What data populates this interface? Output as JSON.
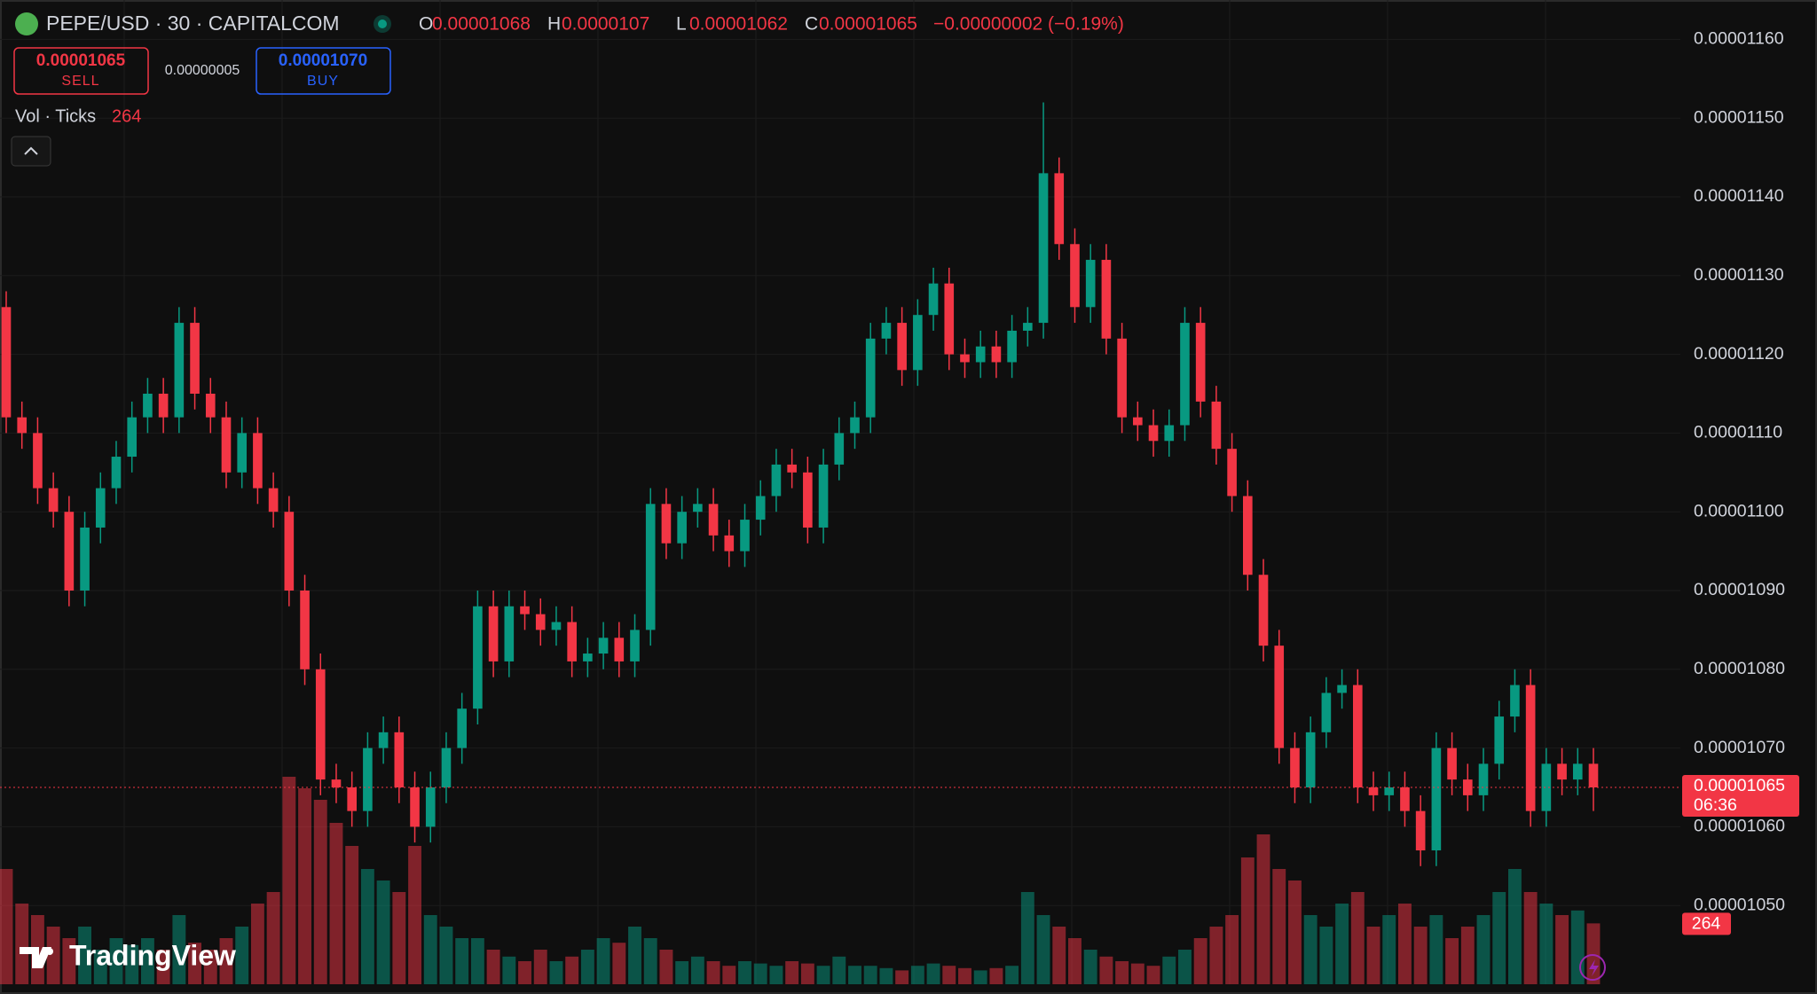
{
  "header": {
    "symbol": "PEPE/USD · 30 · CAPITALCOM",
    "ohlc_labels": [
      "O",
      "H",
      "L",
      "C"
    ],
    "change": "−0.00000002 (−0.19%)",
    "sell_price": "0.00001065",
    "sell_label": "SELL",
    "spread": "0.00000005",
    "buy_price": "0.00001070",
    "buy_label": "BUY",
    "volume_title": "Vol · Ticks",
    "countdown": "06:36",
    "brand": "TradingView"
  },
  "chart_data": {
    "type": "candlestick",
    "up_color": "#089981",
    "down_color": "#f23645",
    "grid": true,
    "ylim": [
      1.04e-05,
      1.165e-05
    ],
    "yticks": [
      {
        "value": 1.05e-05,
        "label": "0.00001050"
      },
      {
        "value": 1.06e-05,
        "label": "0.00001060"
      },
      {
        "value": 1.07e-05,
        "label": "0.00001070"
      },
      {
        "value": 1.08e-05,
        "label": "0.00001080"
      },
      {
        "value": 1.09e-05,
        "label": "0.00001090"
      },
      {
        "value": 1.1e-05,
        "label": "0.00001100"
      },
      {
        "value": 1.11e-05,
        "label": "0.00001110"
      },
      {
        "value": 1.12e-05,
        "label": "0.00001120"
      },
      {
        "value": 1.13e-05,
        "label": "0.00001130"
      },
      {
        "value": 1.14e-05,
        "label": "0.00001140"
      },
      {
        "value": 1.15e-05,
        "label": "0.00001150"
      },
      {
        "value": 1.16e-05,
        "label": "0.00001160"
      }
    ],
    "open": [
      1.126e-05,
      1.112e-05,
      1.11e-05,
      1.103e-05,
      1.1e-05,
      1.09e-05,
      1.098e-05,
      1.103e-05,
      1.107e-05,
      1.112e-05,
      1.115e-05,
      1.112e-05,
      1.124e-05,
      1.115e-05,
      1.112e-05,
      1.105e-05,
      1.11e-05,
      1.103e-05,
      1.1e-05,
      1.09e-05,
      1.08e-05,
      1.066e-05,
      1.065e-05,
      1.062e-05,
      1.07e-05,
      1.072e-05,
      1.065e-05,
      1.06e-05,
      1.065e-05,
      1.07e-05,
      1.075e-05,
      1.088e-05,
      1.081e-05,
      1.088e-05,
      1.087e-05,
      1.085e-05,
      1.086e-05,
      1.081e-05,
      1.082e-05,
      1.084e-05,
      1.081e-05,
      1.085e-05,
      1.101e-05,
      1.096e-05,
      1.1e-05,
      1.101e-05,
      1.097e-05,
      1.095e-05,
      1.099e-05,
      1.102e-05,
      1.106e-05,
      1.105e-05,
      1.098e-05,
      1.106e-05,
      1.11e-05,
      1.112e-05,
      1.122e-05,
      1.124e-05,
      1.118e-05,
      1.125e-05,
      1.129e-05,
      1.12e-05,
      1.119e-05,
      1.121e-05,
      1.119e-05,
      1.123e-05,
      1.124e-05,
      1.143e-05,
      1.134e-05,
      1.126e-05,
      1.132e-05,
      1.122e-05,
      1.112e-05,
      1.111e-05,
      1.109e-05,
      1.111e-05,
      1.124e-05,
      1.114e-05,
      1.108e-05,
      1.102e-05,
      1.092e-05,
      1.083e-05,
      1.07e-05,
      1.065e-05,
      1.072e-05,
      1.077e-05,
      1.078e-05,
      1.065e-05,
      1.064e-05,
      1.065e-05,
      1.062e-05,
      1.057e-05,
      1.07e-05,
      1.066e-05,
      1.064e-05,
      1.068e-05,
      1.074e-05,
      1.078e-05,
      1.062e-05,
      1.068e-05,
      1.066e-05,
      1.068e-05
    ],
    "high": [
      1.128e-05,
      1.114e-05,
      1.112e-05,
      1.105e-05,
      1.102e-05,
      1.1e-05,
      1.105e-05,
      1.109e-05,
      1.114e-05,
      1.117e-05,
      1.117e-05,
      1.126e-05,
      1.126e-05,
      1.117e-05,
      1.114e-05,
      1.112e-05,
      1.112e-05,
      1.105e-05,
      1.102e-05,
      1.092e-05,
      1.082e-05,
      1.068e-05,
      1.067e-05,
      1.072e-05,
      1.074e-05,
      1.074e-05,
      1.067e-05,
      1.067e-05,
      1.072e-05,
      1.077e-05,
      1.09e-05,
      1.09e-05,
      1.09e-05,
      1.09e-05,
      1.089e-05,
      1.088e-05,
      1.088e-05,
      1.084e-05,
      1.086e-05,
      1.086e-05,
      1.087e-05,
      1.103e-05,
      1.103e-05,
      1.102e-05,
      1.103e-05,
      1.103e-05,
      1.099e-05,
      1.101e-05,
      1.104e-05,
      1.108e-05,
      1.108e-05,
      1.107e-05,
      1.108e-05,
      1.112e-05,
      1.114e-05,
      1.124e-05,
      1.126e-05,
      1.126e-05,
      1.127e-05,
      1.131e-05,
      1.131e-05,
      1.122e-05,
      1.123e-05,
      1.123e-05,
      1.125e-05,
      1.126e-05,
      1.152e-05,
      1.145e-05,
      1.136e-05,
      1.134e-05,
      1.134e-05,
      1.124e-05,
      1.114e-05,
      1.113e-05,
      1.113e-05,
      1.126e-05,
      1.126e-05,
      1.116e-05,
      1.11e-05,
      1.104e-05,
      1.094e-05,
      1.085e-05,
      1.072e-05,
      1.074e-05,
      1.079e-05,
      1.08e-05,
      1.08e-05,
      1.067e-05,
      1.067e-05,
      1.067e-05,
      1.064e-05,
      1.072e-05,
      1.072e-05,
      1.068e-05,
      1.07e-05,
      1.076e-05,
      1.08e-05,
      1.08e-05,
      1.07e-05,
      1.07e-05,
      1.07e-05,
      1.07e-05
    ],
    "low": [
      1.11e-05,
      1.108e-05,
      1.101e-05,
      1.098e-05,
      1.088e-05,
      1.088e-05,
      1.096e-05,
      1.101e-05,
      1.105e-05,
      1.11e-05,
      1.11e-05,
      1.11e-05,
      1.113e-05,
      1.11e-05,
      1.103e-05,
      1.103e-05,
      1.101e-05,
      1.098e-05,
      1.088e-05,
      1.078e-05,
      1.064e-05,
      1.063e-05,
      1.06e-05,
      1.06e-05,
      1.068e-05,
      1.063e-05,
      1.058e-05,
      1.058e-05,
      1.063e-05,
      1.068e-05,
      1.073e-05,
      1.079e-05,
      1.079e-05,
      1.085e-05,
      1.083e-05,
      1.083e-05,
      1.079e-05,
      1.079e-05,
      1.08e-05,
      1.079e-05,
      1.079e-05,
      1.083e-05,
      1.094e-05,
      1.094e-05,
      1.098e-05,
      1.095e-05,
      1.093e-05,
      1.093e-05,
      1.097e-05,
      1.1e-05,
      1.103e-05,
      1.096e-05,
      1.096e-05,
      1.104e-05,
      1.108e-05,
      1.11e-05,
      1.12e-05,
      1.116e-05,
      1.116e-05,
      1.123e-05,
      1.118e-05,
      1.117e-05,
      1.117e-05,
      1.117e-05,
      1.117e-05,
      1.121e-05,
      1.122e-05,
      1.132e-05,
      1.124e-05,
      1.124e-05,
      1.12e-05,
      1.11e-05,
      1.109e-05,
      1.107e-05,
      1.107e-05,
      1.109e-05,
      1.112e-05,
      1.106e-05,
      1.1e-05,
      1.09e-05,
      1.081e-05,
      1.068e-05,
      1.063e-05,
      1.063e-05,
      1.07e-05,
      1.075e-05,
      1.063e-05,
      1.062e-05,
      1.062e-05,
      1.06e-05,
      1.055e-05,
      1.055e-05,
      1.064e-05,
      1.062e-05,
      1.062e-05,
      1.066e-05,
      1.072e-05,
      1.06e-05,
      1.06e-05,
      1.064e-05,
      1.064e-05,
      1.062e-05
    ],
    "close": [
      1.112e-05,
      1.11e-05,
      1.103e-05,
      1.1e-05,
      1.09e-05,
      1.098e-05,
      1.103e-05,
      1.107e-05,
      1.112e-05,
      1.115e-05,
      1.112e-05,
      1.124e-05,
      1.115e-05,
      1.112e-05,
      1.105e-05,
      1.11e-05,
      1.103e-05,
      1.1e-05,
      1.09e-05,
      1.08e-05,
      1.066e-05,
      1.065e-05,
      1.062e-05,
      1.07e-05,
      1.072e-05,
      1.065e-05,
      1.06e-05,
      1.065e-05,
      1.07e-05,
      1.075e-05,
      1.088e-05,
      1.081e-05,
      1.088e-05,
      1.087e-05,
      1.085e-05,
      1.086e-05,
      1.081e-05,
      1.082e-05,
      1.084e-05,
      1.081e-05,
      1.085e-05,
      1.101e-05,
      1.096e-05,
      1.1e-05,
      1.101e-05,
      1.097e-05,
      1.095e-05,
      1.099e-05,
      1.102e-05,
      1.106e-05,
      1.105e-05,
      1.098e-05,
      1.106e-05,
      1.11e-05,
      1.112e-05,
      1.122e-05,
      1.124e-05,
      1.118e-05,
      1.125e-05,
      1.129e-05,
      1.12e-05,
      1.119e-05,
      1.121e-05,
      1.119e-05,
      1.123e-05,
      1.124e-05,
      1.143e-05,
      1.134e-05,
      1.126e-05,
      1.132e-05,
      1.122e-05,
      1.112e-05,
      1.111e-05,
      1.109e-05,
      1.111e-05,
      1.124e-05,
      1.114e-05,
      1.108e-05,
      1.102e-05,
      1.092e-05,
      1.083e-05,
      1.07e-05,
      1.065e-05,
      1.072e-05,
      1.077e-05,
      1.078e-05,
      1.065e-05,
      1.064e-05,
      1.065e-05,
      1.062e-05,
      1.057e-05,
      1.07e-05,
      1.066e-05,
      1.064e-05,
      1.068e-05,
      1.074e-05,
      1.078e-05,
      1.062e-05,
      1.068e-05,
      1.066e-05,
      1.068e-05,
      1.065e-05
    ],
    "volume": [
      500,
      350,
      300,
      250,
      200,
      250,
      150,
      200,
      170,
      200,
      150,
      300,
      180,
      150,
      200,
      250,
      350,
      400,
      900,
      850,
      800,
      700,
      600,
      500,
      450,
      400,
      600,
      300,
      250,
      200,
      200,
      150,
      120,
      100,
      150,
      100,
      120,
      150,
      200,
      180,
      250,
      200,
      150,
      100,
      120,
      100,
      80,
      100,
      90,
      80,
      100,
      90,
      80,
      120,
      80,
      80,
      70,
      60,
      80,
      90,
      80,
      70,
      60,
      70,
      80,
      400,
      300,
      250,
      200,
      150,
      120,
      100,
      90,
      80,
      120,
      150,
      200,
      250,
      300,
      550,
      650,
      500,
      450,
      300,
      250,
      350,
      400,
      250,
      300,
      350,
      250,
      300,
      200,
      250,
      300,
      400,
      500,
      400,
      350,
      300,
      320,
      264
    ]
  }
}
